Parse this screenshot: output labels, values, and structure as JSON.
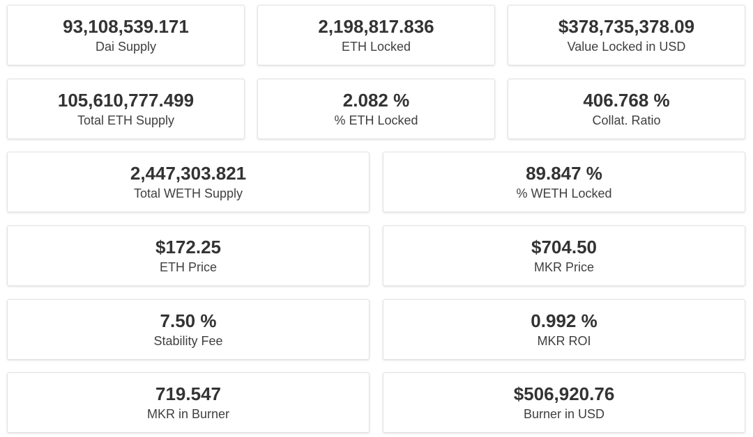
{
  "stats": {
    "dai_supply": {
      "value": "93,108,539.171",
      "label": "Dai Supply"
    },
    "eth_locked": {
      "value": "2,198,817.836",
      "label": "ETH Locked"
    },
    "value_locked_usd": {
      "value": "$378,735,378.09",
      "label": "Value Locked in USD"
    },
    "total_eth_supply": {
      "value": "105,610,777.499",
      "label": "Total ETH Supply"
    },
    "pct_eth_locked": {
      "value": "2.082 %",
      "label": "% ETH Locked"
    },
    "collat_ratio": {
      "value": "406.768 %",
      "label": "Collat. Ratio"
    },
    "total_weth_supply": {
      "value": "2,447,303.821",
      "label": "Total WETH Supply"
    },
    "pct_weth_locked": {
      "value": "89.847 %",
      "label": "% WETH Locked"
    },
    "eth_price": {
      "value": "$172.25",
      "label": "ETH Price"
    },
    "mkr_price": {
      "value": "$704.50",
      "label": "MKR Price"
    },
    "stability_fee": {
      "value": "7.50 %",
      "label": "Stability Fee"
    },
    "mkr_roi": {
      "value": "0.992 %",
      "label": "MKR ROI"
    },
    "mkr_in_burner": {
      "value": "719.547",
      "label": "MKR in Burner"
    },
    "burner_in_usd": {
      "value": "$506,920.76",
      "label": "Burner in USD"
    }
  },
  "colors": {
    "background": "#ffffff",
    "card_border": "#e2e2e2",
    "text": "#333333"
  }
}
